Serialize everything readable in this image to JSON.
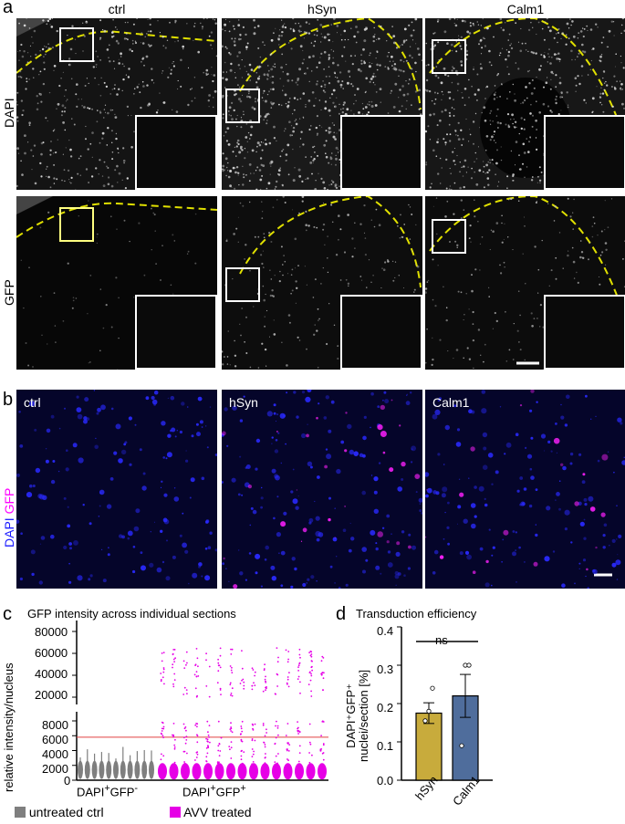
{
  "panel_a": {
    "letter": "a",
    "columns": [
      "ctrl",
      "hSyn",
      "Calm1"
    ],
    "rows": [
      "DAPI",
      "GFP"
    ]
  },
  "panel_b": {
    "letter": "b",
    "labels": [
      "ctrl",
      "hSyn",
      "Calm1"
    ],
    "side_label_dapi": "DAPI",
    "side_label_gfp": "GFP",
    "colors": {
      "dapi": "#1a1aff",
      "gfp": "#ff00ff",
      "background": "#05052a"
    }
  },
  "panel_c": {
    "letter": "c",
    "chart_data": {
      "type": "scatter",
      "title": "GFP intensity across individual sections",
      "ylabel": "relative intensity/nucleus",
      "y_ticks_lower": [
        "0",
        "2000",
        "4000",
        "6000",
        "8000"
      ],
      "y_ticks_upper": [
        "20000",
        "40000",
        "60000",
        "80000"
      ],
      "threshold": 5800,
      "x_groups": [
        {
          "label_main": "DAPI",
          "sup1": "+",
          "label_mid": "GFP",
          "sup2": "-"
        },
        {
          "label_main": "DAPI",
          "sup1": "+",
          "label_mid": "GFP",
          "sup2": "+"
        }
      ],
      "legend": [
        {
          "name": "untreated ctrl",
          "color": "#7f7f7f"
        },
        {
          "name": "AVV treated",
          "color": "#e600e6"
        }
      ]
    }
  },
  "panel_d": {
    "letter": "d",
    "chart_data": {
      "type": "bar",
      "title": "Transduction efficiency",
      "ylabel_line1": "DAPI⁺GFP⁺",
      "ylabel_line2": "nuclei/section [%]",
      "categories": [
        "hSyn",
        "Calm1"
      ],
      "values": [
        0.175,
        0.22
      ],
      "errors": [
        0.027,
        0.056
      ],
      "points": [
        [
          0.155,
          0.18,
          0.24
        ],
        [
          0.09,
          0.3,
          0.3
        ]
      ],
      "colors": [
        "#c8ab3c",
        "#4f6d9c"
      ],
      "ylim": [
        0,
        0.4
      ],
      "y_ticks": [
        "0.0",
        "0.1",
        "0.2",
        "0.3",
        "0.4"
      ],
      "significance": "ns"
    }
  }
}
